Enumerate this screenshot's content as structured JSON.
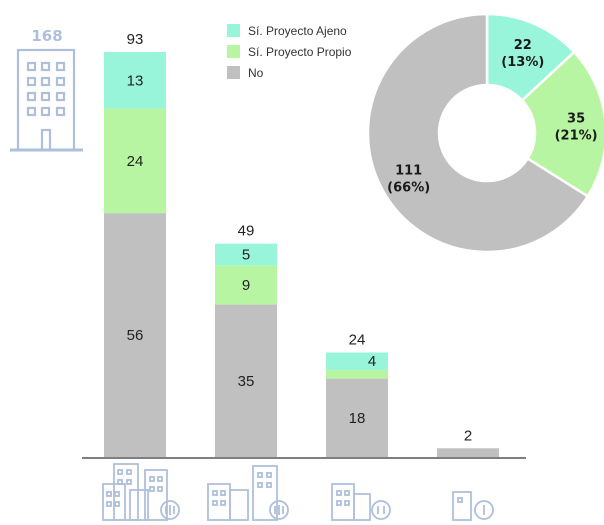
{
  "building_count": "168",
  "icon_names": [
    "building-icon",
    "large-complex-icon",
    "medium-complex-icon",
    "small-complex-icon",
    "tiny-building-icon"
  ],
  "colors": {
    "ajeno": "#99f5d9",
    "propio": "#b8f5a2",
    "no": "#c0c0c0",
    "icon": "#aebfdc"
  },
  "chart_data": [
    {
      "type": "bar",
      "stacked": true,
      "categories": [
        "",
        "",
        "",
        ""
      ],
      "series": [
        {
          "name": "No",
          "values": [
            56,
            35,
            18,
            2
          ]
        },
        {
          "name": "Sí. Proyecto Propio",
          "values": [
            24,
            9,
            2,
            null
          ]
        },
        {
          "name": "Sí. Proyecto Ajeno",
          "values": [
            13,
            5,
            4,
            null
          ]
        }
      ],
      "totals": [
        "93",
        "49",
        "24",
        "2"
      ],
      "ylim": [
        0,
        93
      ],
      "grid": false,
      "legend": {
        "position": "top-center",
        "entries": [
          "Sí. Proyecto Ajeno",
          "Sí. Proyecto Propio",
          "No"
        ]
      }
    },
    {
      "type": "pie",
      "donut": true,
      "slices": [
        {
          "name": "Sí. Proyecto Ajeno",
          "value": 22,
          "percent": "(13%)"
        },
        {
          "name": "Sí. Proyecto Propio",
          "value": 35,
          "percent": "(21%)"
        },
        {
          "name": "No",
          "value": 111,
          "percent": "(66%)"
        }
      ]
    }
  ]
}
